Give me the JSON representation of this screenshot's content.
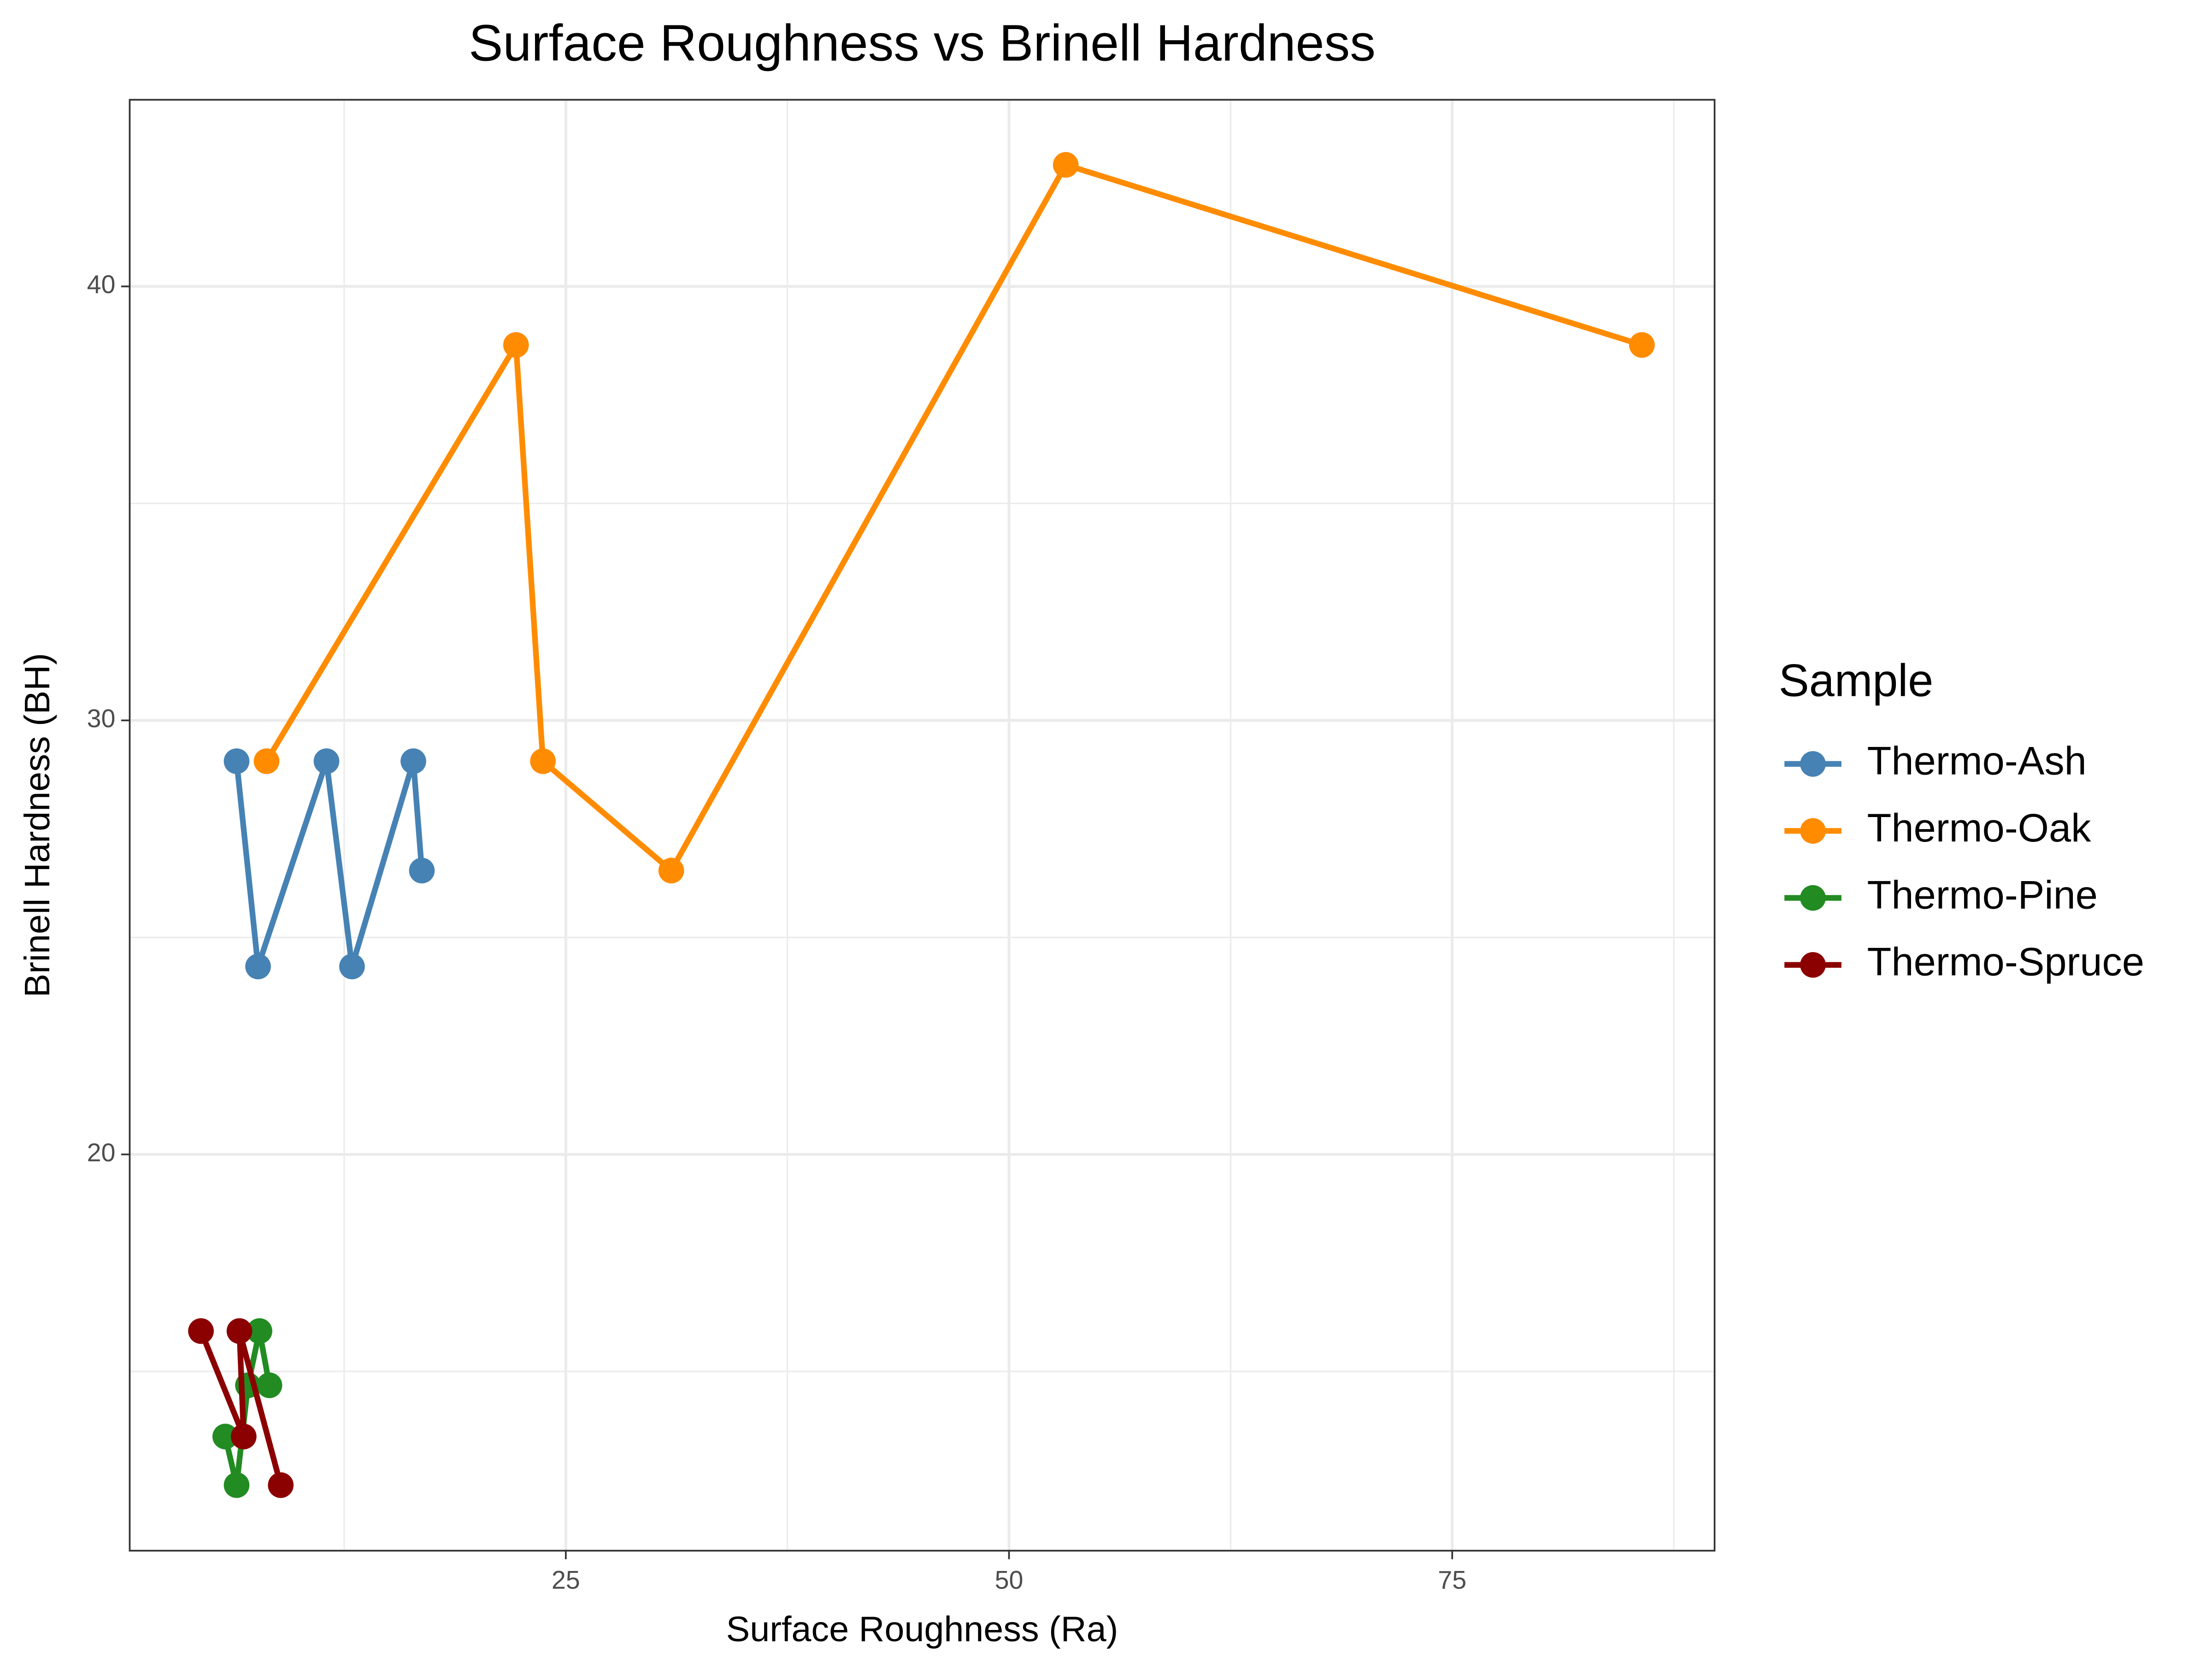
{
  "chart_data": {
    "type": "line",
    "title": "Surface Roughness vs Brinell Hardness",
    "x_label": "Surface Roughness (Ra)",
    "y_label": "Brinell Hardness (BH)",
    "legend_title": "Sample",
    "legend_position": "right",
    "grid": true,
    "xlim": [
      0.4,
      89.8
    ],
    "ylim": [
      10.87,
      44.3
    ],
    "xticks": [
      25,
      50,
      75
    ],
    "yticks": [
      20,
      30,
      40
    ],
    "minor_xticks": [
      12.5,
      37.5,
      62.5,
      87.5
    ],
    "minor_yticks": [
      15,
      25,
      35
    ],
    "series": [
      {
        "name": "Thermo-Ash",
        "color": "#4682b4",
        "x": [
          6.43,
          7.64,
          11.5,
          12.94,
          16.4,
          16.88
        ],
        "values": [
          29.06,
          24.33,
          29.06,
          24.33,
          29.06,
          26.54
        ]
      },
      {
        "name": "Thermo-Oak",
        "color": "#ff8c00",
        "x": [
          8.12,
          22.19,
          23.71,
          30.95,
          53.2,
          85.7
        ],
        "values": [
          29.06,
          38.65,
          29.06,
          26.54,
          42.8,
          38.65
        ]
      },
      {
        "name": "Thermo-Pine",
        "color": "#228b22",
        "x": [
          5.79,
          6.43,
          7.07,
          7.72,
          8.28
        ],
        "values": [
          13.5,
          12.38,
          14.68,
          15.93,
          14.68
        ]
      },
      {
        "name": "Thermo-Spruce",
        "color": "#8b0000",
        "x": [
          4.42,
          6.83,
          6.59,
          8.92
        ],
        "values": [
          15.93,
          13.5,
          15.93,
          12.38
        ]
      }
    ]
  }
}
